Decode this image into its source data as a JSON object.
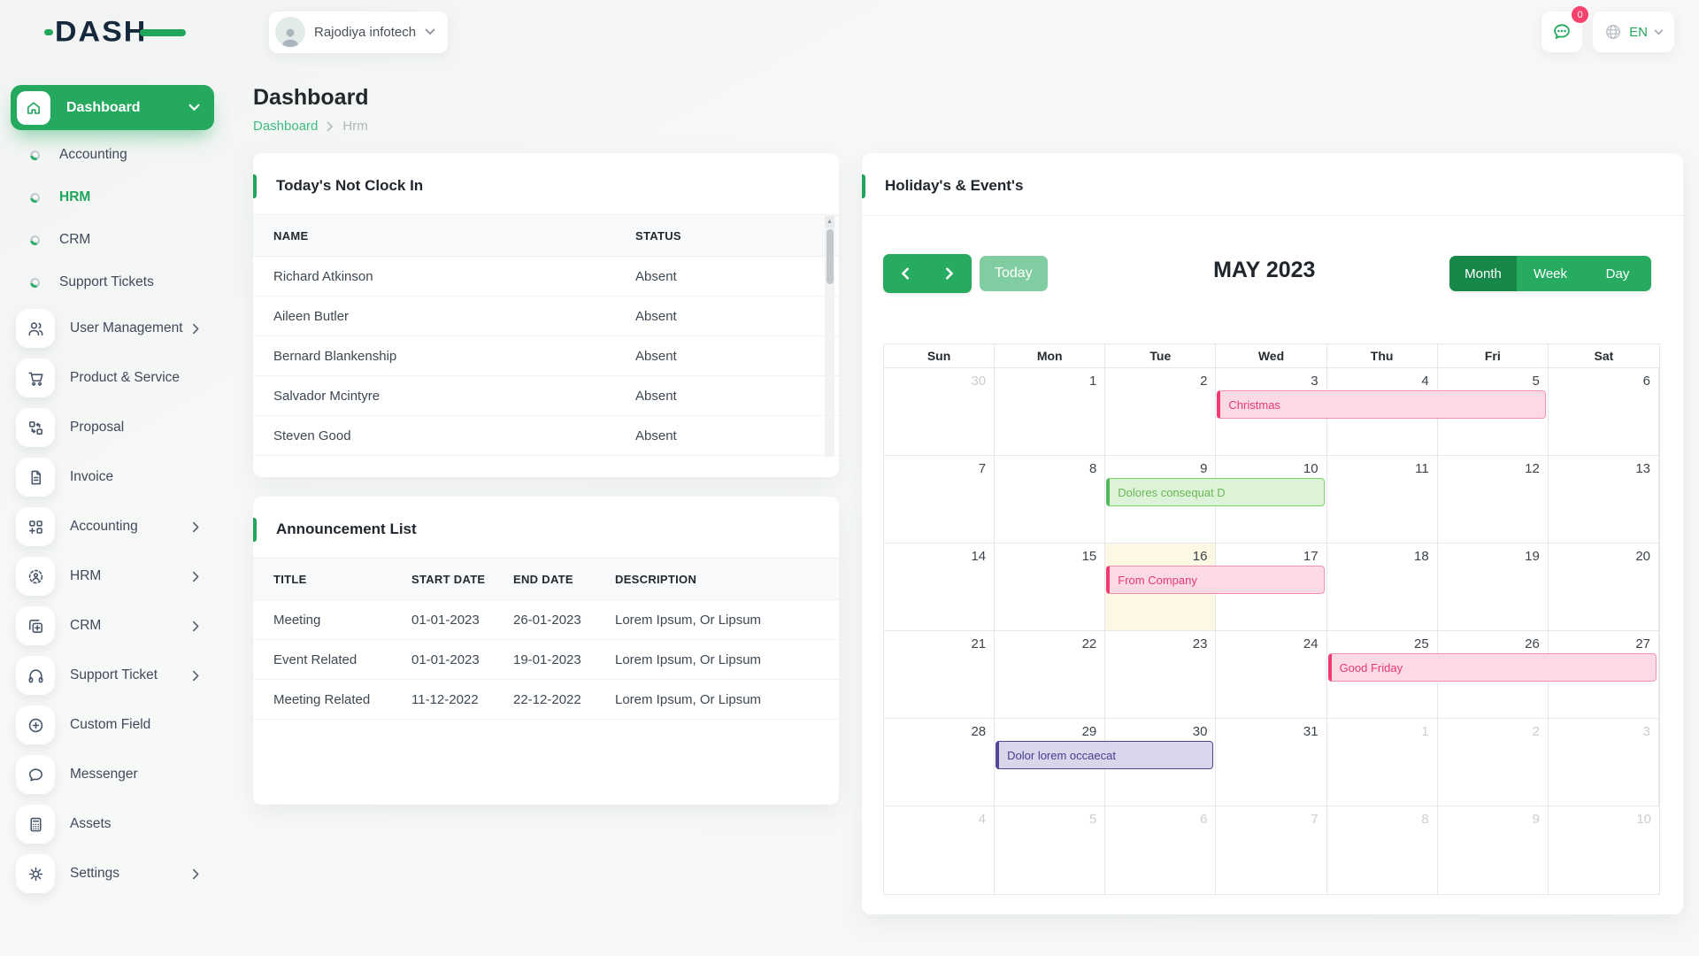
{
  "theme": {
    "primary_green": "#22a55c",
    "active_view_green": "#17874a",
    "today_button_green": "#80cda2",
    "badge_pink": "#f6426c",
    "today_cell_bg": "#fcf8e3",
    "event_colors": {
      "pink": {
        "bg": "#fbdae3",
        "border": "#f590b2",
        "bar": "#f23a72",
        "text": "#e63973"
      },
      "green": {
        "bg": "#ddf3d8",
        "border": "#7ed36a",
        "bar": "#56b85c",
        "text": "#68b757"
      },
      "purple": {
        "bg": "#d9d6ec",
        "border": "#4f4796",
        "bar": "#4f4796",
        "text": "#443e8e"
      }
    }
  },
  "topbar": {
    "logo_text": "DASH",
    "company": "Rajodiya infotech",
    "messages_badge": "0",
    "language": "EN"
  },
  "sidebar": {
    "dashboard": {
      "label": "Dashboard",
      "icon": "home"
    },
    "sub_items": [
      {
        "label": "Accounting",
        "active": false
      },
      {
        "label": "HRM",
        "active": true
      },
      {
        "label": "CRM",
        "active": false
      },
      {
        "label": "Support Tickets",
        "active": false
      }
    ],
    "menu_items": [
      {
        "label": "User Management",
        "icon": "users",
        "expandable": true
      },
      {
        "label": "Product & Service",
        "icon": "cart",
        "expandable": false
      },
      {
        "label": "Proposal",
        "icon": "proposal",
        "expandable": false
      },
      {
        "label": "Invoice",
        "icon": "invoice",
        "expandable": false
      },
      {
        "label": "Accounting",
        "icon": "accounting",
        "expandable": true
      },
      {
        "label": "HRM",
        "icon": "hrm",
        "expandable": true
      },
      {
        "label": "CRM",
        "icon": "crm",
        "expandable": true
      },
      {
        "label": "Support Ticket",
        "icon": "headset",
        "expandable": true
      },
      {
        "label": "Custom Field",
        "icon": "plus-circle",
        "expandable": false
      },
      {
        "label": "Messenger",
        "icon": "chat",
        "expandable": false
      },
      {
        "label": "Assets",
        "icon": "calculator",
        "expandable": false
      },
      {
        "label": "Settings",
        "icon": "gear",
        "expandable": true
      }
    ]
  },
  "page": {
    "title": "Dashboard",
    "breadcrumb": {
      "root": "Dashboard",
      "current": "Hrm"
    }
  },
  "not_clock_in": {
    "title": "Today's Not Clock In",
    "columns": [
      "NAME",
      "STATUS"
    ],
    "rows": [
      {
        "name": "Richard Atkinson",
        "status": "Absent"
      },
      {
        "name": "Aileen Butler",
        "status": "Absent"
      },
      {
        "name": "Bernard Blankenship",
        "status": "Absent"
      },
      {
        "name": "Salvador Mcintyre",
        "status": "Absent"
      },
      {
        "name": "Steven Good",
        "status": "Absent"
      }
    ]
  },
  "announcements": {
    "title": "Announcement List",
    "columns": [
      "TITLE",
      "START DATE",
      "END DATE",
      "DESCRIPTION"
    ],
    "rows": [
      {
        "title": "Meeting",
        "start": "01-01-2023",
        "end": "26-01-2023",
        "description": "Lorem Ipsum, Or Lipsum"
      },
      {
        "title": "Event Related",
        "start": "01-01-2023",
        "end": "19-01-2023",
        "description": "Lorem Ipsum, Or Lipsum"
      },
      {
        "title": "Meeting Related",
        "start": "11-12-2022",
        "end": "22-12-2022",
        "description": "Lorem Ipsum, Or Lipsum"
      }
    ]
  },
  "calendar": {
    "title": "Holiday's & Event's",
    "month_label": "MAY 2023",
    "today_label": "Today",
    "views": [
      "Month",
      "Week",
      "Day"
    ],
    "active_view": "Month",
    "day_headers": [
      "Sun",
      "Mon",
      "Tue",
      "Wed",
      "Thu",
      "Fri",
      "Sat"
    ],
    "weeks": [
      [
        {
          "d": 30,
          "out": true
        },
        {
          "d": 1
        },
        {
          "d": 2
        },
        {
          "d": 3
        },
        {
          "d": 4
        },
        {
          "d": 5
        },
        {
          "d": 6
        }
      ],
      [
        {
          "d": 7
        },
        {
          "d": 8
        },
        {
          "d": 9
        },
        {
          "d": 10
        },
        {
          "d": 11
        },
        {
          "d": 12
        },
        {
          "d": 13
        }
      ],
      [
        {
          "d": 14
        },
        {
          "d": 15
        },
        {
          "d": 16,
          "today": true
        },
        {
          "d": 17
        },
        {
          "d": 18
        },
        {
          "d": 19
        },
        {
          "d": 20
        }
      ],
      [
        {
          "d": 21
        },
        {
          "d": 22
        },
        {
          "d": 23
        },
        {
          "d": 24
        },
        {
          "d": 25
        },
        {
          "d": 26
        },
        {
          "d": 27
        }
      ],
      [
        {
          "d": 28
        },
        {
          "d": 29
        },
        {
          "d": 30
        },
        {
          "d": 31
        },
        {
          "d": 1,
          "out": true
        },
        {
          "d": 2,
          "out": true
        },
        {
          "d": 3,
          "out": true
        }
      ],
      [
        {
          "d": 4,
          "out": true
        },
        {
          "d": 5,
          "out": true
        },
        {
          "d": 6,
          "out": true
        },
        {
          "d": 7,
          "out": true
        },
        {
          "d": 8,
          "out": true
        },
        {
          "d": 9,
          "out": true
        },
        {
          "d": 10,
          "out": true
        }
      ]
    ],
    "events": [
      {
        "title": "Christmas",
        "week": 0,
        "col": 3,
        "span": 3,
        "color": "pink"
      },
      {
        "title": "Dolores consequat D",
        "week": 1,
        "col": 2,
        "span": 2,
        "color": "green"
      },
      {
        "title": "From Company",
        "week": 2,
        "col": 2,
        "span": 2,
        "color": "pink"
      },
      {
        "title": "Good Friday",
        "week": 3,
        "col": 4,
        "span": 3,
        "color": "pink"
      },
      {
        "title": "Dolor lorem occaecat",
        "week": 4,
        "col": 1,
        "span": 2,
        "color": "purple"
      }
    ]
  }
}
